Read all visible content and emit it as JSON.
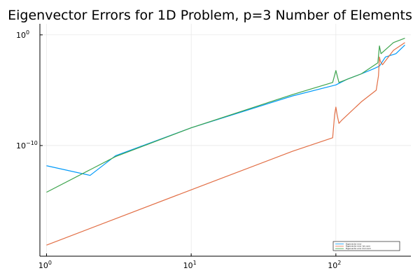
{
  "chart_data": {
    "type": "line",
    "title": "Eigenvector Errors for 1D Problem, p=3 Number of Elements",
    "xlabel": "",
    "ylabel": "",
    "xscale": "log",
    "yscale": "log",
    "xlim": [
      0.9,
      330
    ],
    "ylim": [
      1e-20,
      10
    ],
    "grid": true,
    "legend": "bottom-right",
    "x_ticks": [
      {
        "value": 1,
        "base": "10",
        "exp": "0"
      },
      {
        "value": 10,
        "base": "10",
        "exp": "1"
      },
      {
        "value": 100,
        "base": "10",
        "exp": "2"
      }
    ],
    "y_ticks": [
      {
        "value": 1,
        "base": "10",
        "exp": "0"
      },
      {
        "value": 1e-10,
        "base": "10",
        "exp": "−10"
      }
    ],
    "series": [
      {
        "name": "Eigenvector error",
        "color": "#009AFA",
        "points": [
          [
            1,
            1.5e-12
          ],
          [
            2,
            2e-13
          ],
          [
            3,
            1.2e-11
          ],
          [
            10,
            4e-09
          ],
          [
            50,
            3e-06
          ],
          [
            100,
            3e-05
          ],
          [
            120,
            0.0001
          ],
          [
            150,
            0.0003
          ],
          [
            180,
            0.0008
          ],
          [
            200,
            0.0015
          ],
          [
            220,
            0.01
          ],
          [
            260,
            0.02
          ],
          [
            300,
            0.12
          ]
        ]
      },
      {
        "name": "Eigenvector error 1st norm",
        "color": "#E26F46",
        "points": [
          [
            1,
            1e-19
          ],
          [
            10,
            1e-14
          ],
          [
            50,
            3e-11
          ],
          [
            95,
            5e-10
          ],
          [
            98,
            6e-08
          ],
          [
            100,
            3e-07
          ],
          [
            102,
            6e-08
          ],
          [
            105,
            1e-08
          ],
          [
            110,
            2e-08
          ],
          [
            150,
            9e-07
          ],
          [
            190,
            1e-05
          ],
          [
            197,
            0.0002
          ],
          [
            200,
            0.01
          ],
          [
            203,
            0.004
          ],
          [
            210,
            0.002
          ],
          [
            250,
            0.04
          ],
          [
            300,
            0.2
          ]
        ]
      },
      {
        "name": "Eigenvector error 2nd norm",
        "color": "#3DA44D",
        "points": [
          [
            1,
            6e-15
          ],
          [
            3,
            1e-11
          ],
          [
            10,
            4e-09
          ],
          [
            50,
            4e-06
          ],
          [
            95,
            5e-05
          ],
          [
            100,
            0.0006
          ],
          [
            105,
            5e-05
          ],
          [
            150,
            0.0003
          ],
          [
            195,
            0.003
          ],
          [
            200,
            0.1
          ],
          [
            205,
            0.02
          ],
          [
            250,
            0.2
          ],
          [
            300,
            0.5
          ]
        ]
      }
    ]
  }
}
